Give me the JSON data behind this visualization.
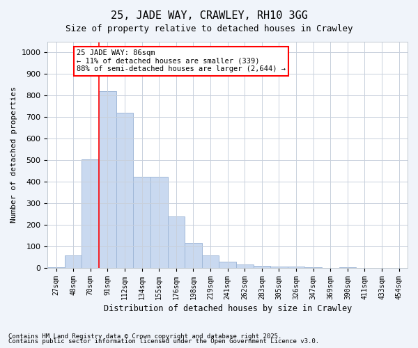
{
  "title1": "25, JADE WAY, CRAWLEY, RH10 3GG",
  "title2": "Size of property relative to detached houses in Crawley",
  "xlabel": "Distribution of detached houses by size in Crawley",
  "ylabel": "Number of detached properties",
  "categories": [
    "27sqm",
    "48sqm",
    "70sqm",
    "91sqm",
    "112sqm",
    "134sqm",
    "155sqm",
    "176sqm",
    "198sqm",
    "219sqm",
    "241sqm",
    "262sqm",
    "283sqm",
    "305sqm",
    "326sqm",
    "347sqm",
    "369sqm",
    "390sqm",
    "411sqm",
    "433sqm",
    "454sqm"
  ],
  "values": [
    5,
    60,
    505,
    820,
    720,
    425,
    425,
    240,
    115,
    60,
    30,
    15,
    10,
    8,
    8,
    5,
    0,
    5,
    0,
    0,
    0
  ],
  "bar_color": "#c9d9f0",
  "bar_edge_color": "#a0b8d8",
  "red_line_x": 3,
  "ylim": [
    0,
    1050
  ],
  "yticks": [
    0,
    100,
    200,
    300,
    400,
    500,
    600,
    700,
    800,
    900,
    1000
  ],
  "annotation_title": "25 JADE WAY: 86sqm",
  "annotation_line1": "← 11% of detached houses are smaller (339)",
  "annotation_line2": "88% of semi-detached houses are larger (2,644) →",
  "footnote1": "Contains HM Land Registry data © Crown copyright and database right 2025.",
  "footnote2": "Contains public sector information licensed under the Open Government Licence v3.0.",
  "bg_color": "#f0f4fa",
  "plot_bg_color": "#ffffff",
  "grid_color": "#c8d0dc"
}
